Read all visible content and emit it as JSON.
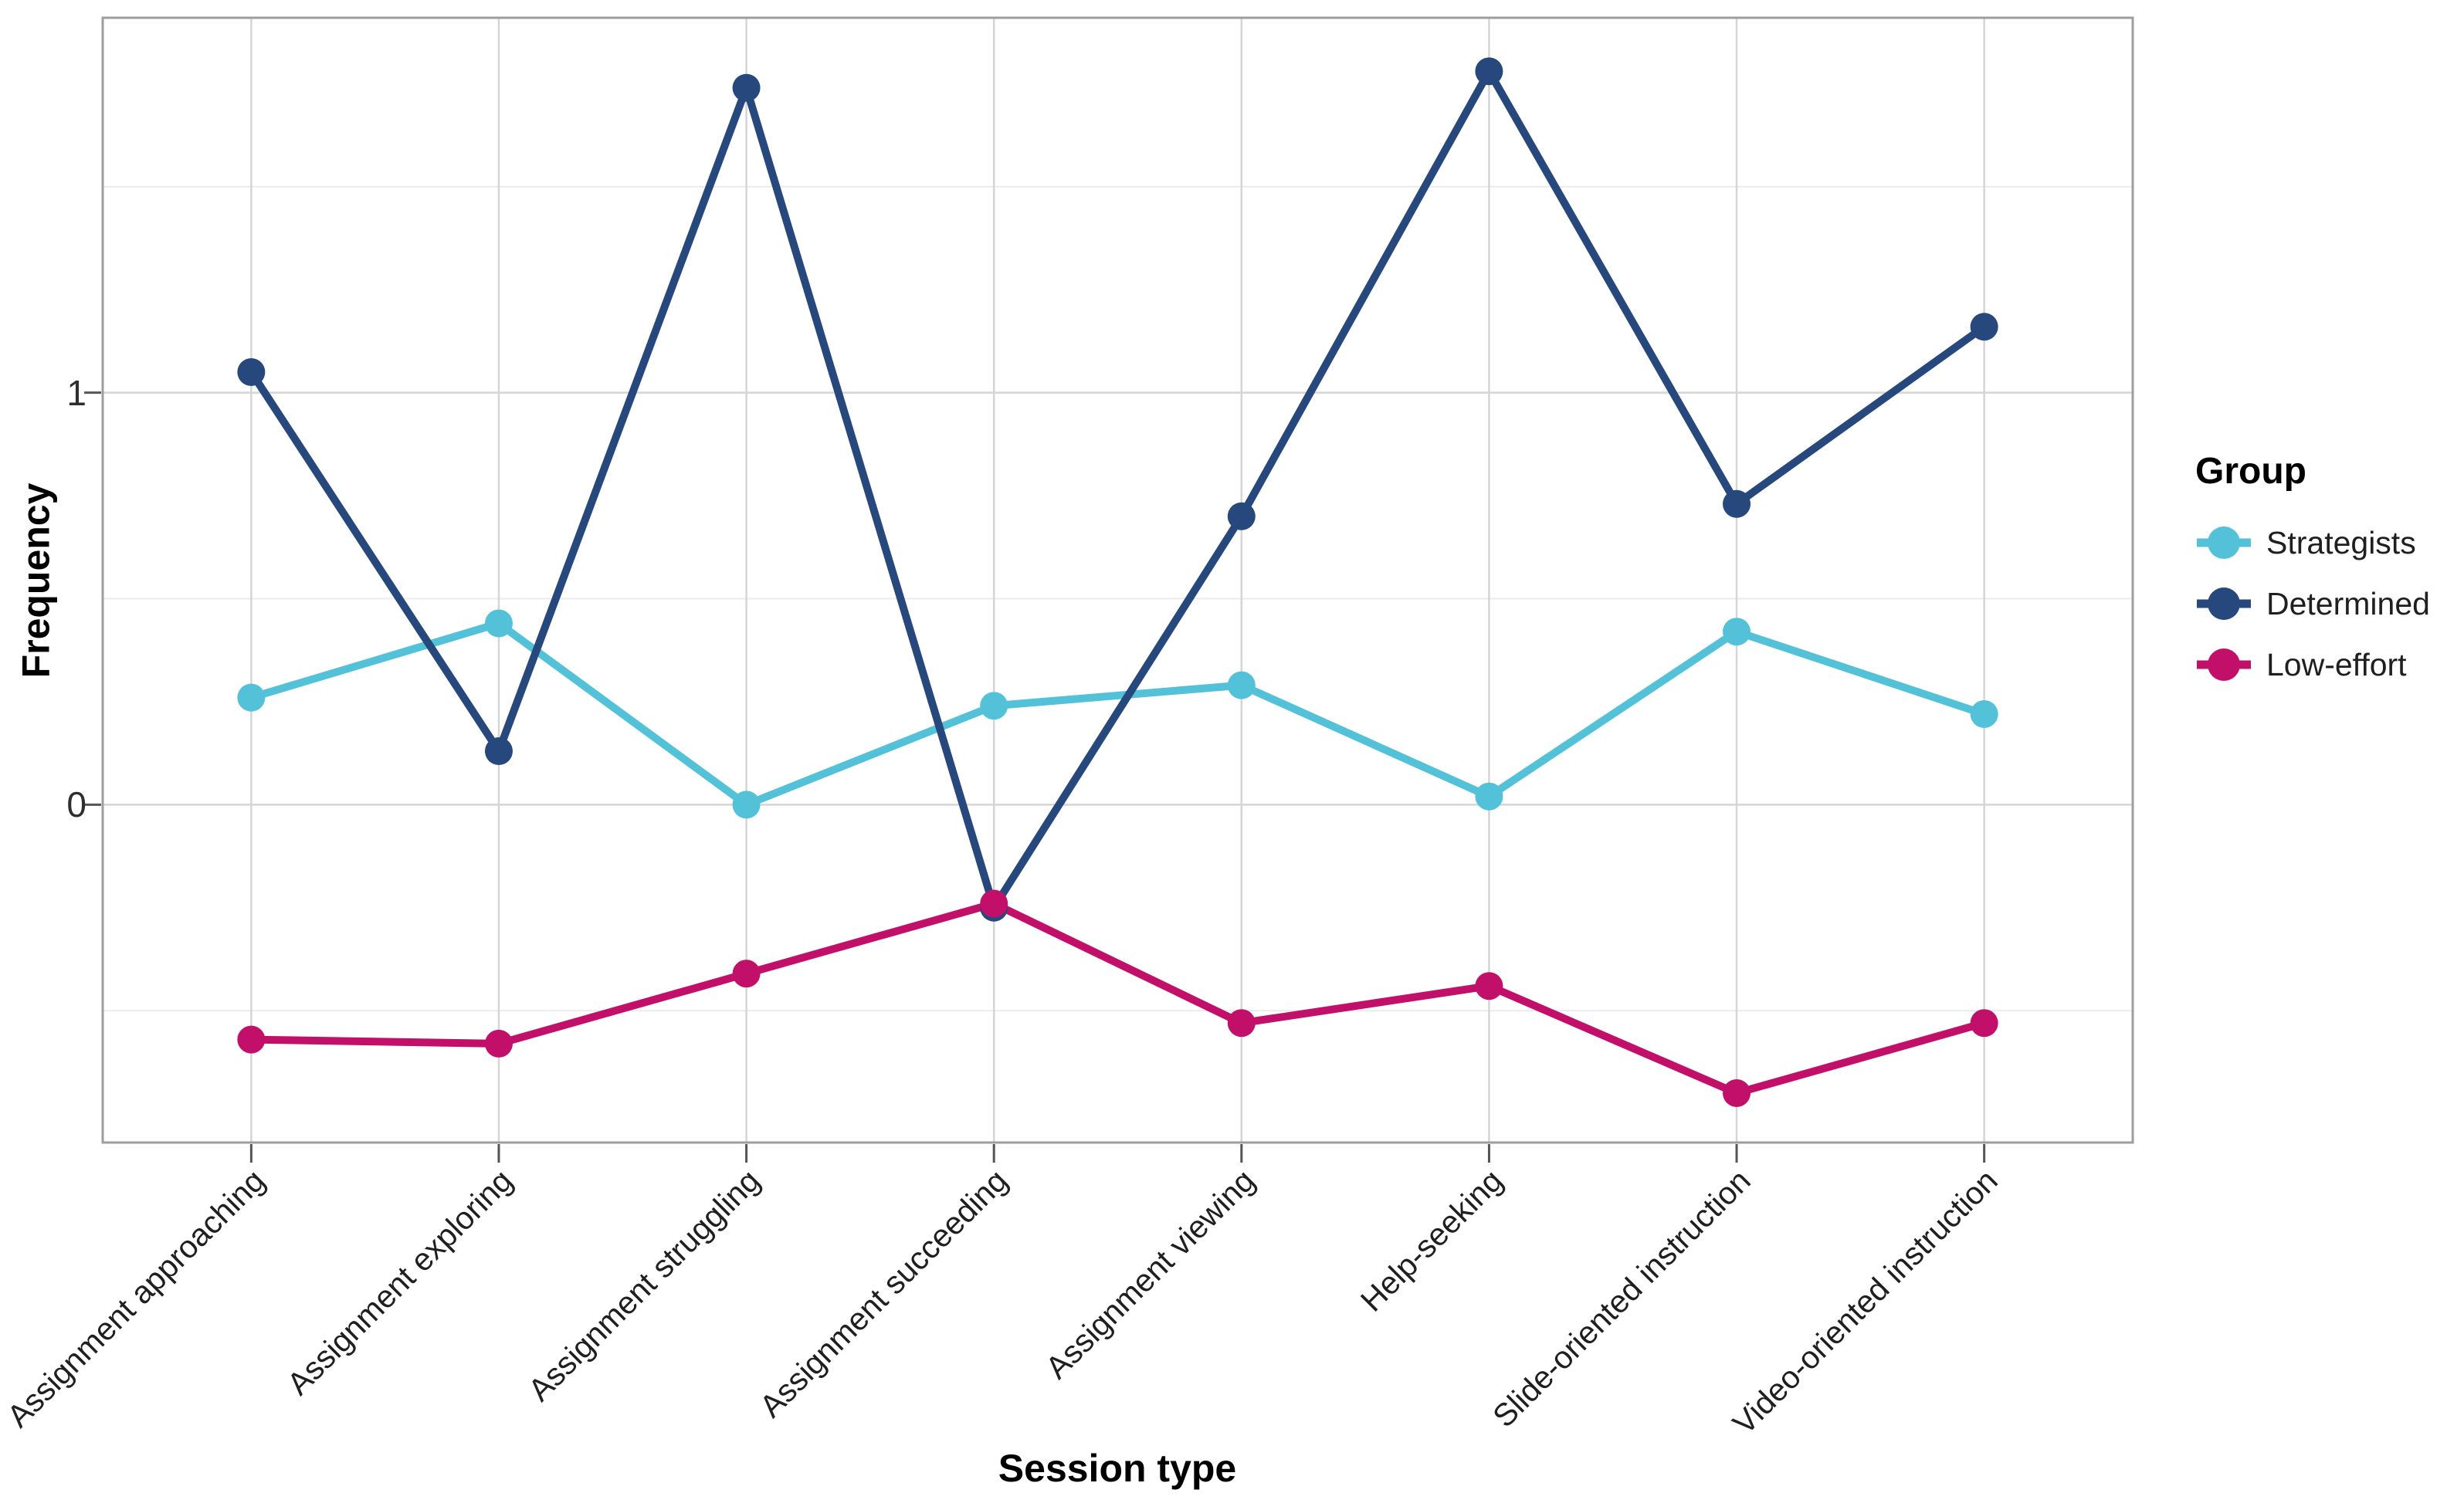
{
  "chart_data": {
    "type": "line",
    "title": "",
    "xlabel": "Session type",
    "ylabel": "Frequency",
    "categories": [
      "Assignment approaching",
      "Assignment exploring",
      "Assignment struggling",
      "Assignment succeeding",
      "Assignment viewing",
      "Help-seeking",
      "Slide-oriented instruction",
      "Video-oriented instruction"
    ],
    "series": [
      {
        "name": "Strategists",
        "color": "#53C2D9",
        "values": [
          0.26,
          0.44,
          0.0,
          0.24,
          0.29,
          0.02,
          0.42,
          0.22
        ]
      },
      {
        "name": "Determined",
        "color": "#26487C",
        "values": [
          1.05,
          0.13,
          1.74,
          -0.25,
          0.7,
          1.78,
          0.73,
          1.16
        ]
      },
      {
        "name": "Low-effort",
        "color": "#C2106A",
        "values": [
          -0.57,
          -0.58,
          -0.41,
          -0.24,
          -0.53,
          -0.44,
          -0.7,
          -0.53
        ]
      }
    ],
    "ylim": [
      -0.82,
      1.91
    ],
    "y_major_ticks": [
      0,
      1
    ],
    "y_minor_ticks": [
      -0.5,
      0.5,
      1.5
    ],
    "grid": "major-and-minor, light gray, white panel with gray border",
    "legend": {
      "title": "Group",
      "position": "right"
    }
  },
  "colors": {
    "grid_major": "#D5D5D5",
    "grid_minor": "#EBEBEB",
    "panel_border": "#9E9E9E",
    "tick_mark": "#555555",
    "axis_text": "#2e2e2e"
  }
}
